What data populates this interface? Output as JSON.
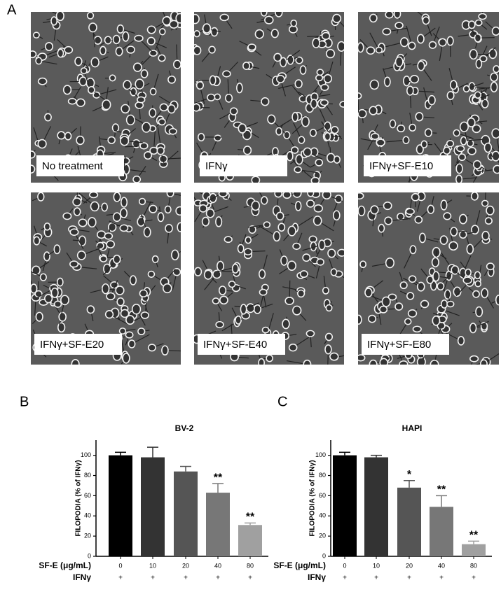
{
  "panel_labels": {
    "a": "A",
    "b": "B",
    "c": "C"
  },
  "images": [
    {
      "label": "No treatment"
    },
    {
      "label": "IFNγ"
    },
    {
      "label": "IFNγ+SF-E10"
    },
    {
      "label": "IFNγ+SF-E20"
    },
    {
      "label": "IFNγ+SF-E40"
    },
    {
      "label": "IFNγ+SF-E80"
    }
  ],
  "chart_data": [
    {
      "type": "bar",
      "title": "BV-2",
      "y_label": "FILOPODIA (% of IFNγ)",
      "x_label": "SF-E (μg/mL)",
      "categories": [
        "0",
        "10",
        "20",
        "40",
        "80"
      ],
      "row2_label": "IFNγ",
      "row2": [
        "+",
        "+",
        "+",
        "+",
        "+"
      ],
      "values": [
        100,
        98,
        84,
        63,
        31
      ],
      "errors": [
        3,
        10,
        5,
        9,
        2
      ],
      "significance": [
        null,
        null,
        null,
        "**",
        "**"
      ],
      "colors": [
        "#000000",
        "#333333",
        "#555555",
        "#777777",
        "#a0a0a0"
      ],
      "ylim": [
        0,
        115
      ],
      "yticks": [
        0,
        20,
        40,
        60,
        80,
        100
      ]
    },
    {
      "type": "bar",
      "title": "HAPI",
      "y_label": "FILOPODIA (% of IFNγ)",
      "x_label": "SF-E (μg/mL)",
      "categories": [
        "0",
        "10",
        "20",
        "40",
        "80"
      ],
      "row2_label": "IFNγ",
      "row2": [
        "+",
        "+",
        "+",
        "+",
        "+"
      ],
      "values": [
        100,
        98,
        68,
        49,
        12
      ],
      "errors": [
        3,
        2,
        7,
        11,
        3
      ],
      "significance": [
        null,
        null,
        "*",
        "**",
        "**"
      ],
      "colors": [
        "#000000",
        "#333333",
        "#555555",
        "#777777",
        "#a0a0a0"
      ],
      "ylim": [
        0,
        115
      ],
      "yticks": [
        0,
        20,
        40,
        60,
        80,
        100
      ]
    }
  ]
}
